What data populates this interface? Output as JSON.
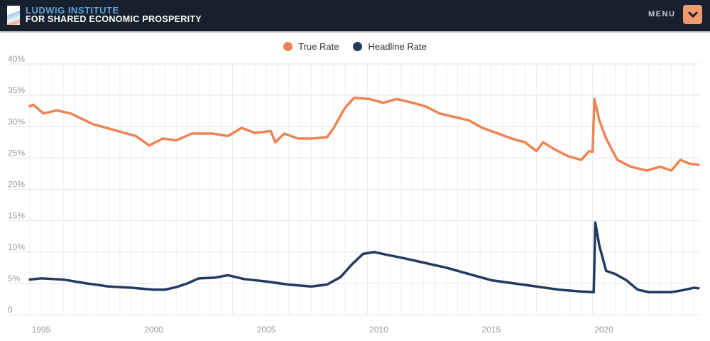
{
  "header": {
    "org_line1": "LUDWIG INSTITUTE",
    "org_line2": "FOR SHARED ECONOMIC PROSPERITY",
    "menu_label": "MENU",
    "menu_icon": "chevron-down-icon"
  },
  "chart_data": {
    "type": "line",
    "title": "",
    "xlabel": "",
    "ylabel": "",
    "xlim": [
      1994.4,
      2024.3
    ],
    "ylim": [
      0,
      40
    ],
    "grid": true,
    "legend_position": "top",
    "x_ticks": [
      "1995",
      "2000",
      "2005",
      "2010",
      "2015",
      "2020"
    ],
    "x_tick_values": [
      1995,
      2000,
      2005,
      2010,
      2015,
      2020
    ],
    "y_ticks": [
      "0",
      "5%",
      "10%",
      "15%",
      "20%",
      "25%",
      "30%",
      "35%",
      "40%"
    ],
    "y_tick_values": [
      0,
      5,
      10,
      15,
      20,
      25,
      30,
      35,
      40
    ],
    "series": [
      {
        "name": "True Rate",
        "color": "#ee8354",
        "points": [
          [
            1994.45,
            33.2
          ],
          [
            1994.65,
            33.5
          ],
          [
            1995.1,
            32.1
          ],
          [
            1995.7,
            32.6
          ],
          [
            1996.3,
            32.1
          ],
          [
            1997.3,
            30.4
          ],
          [
            1998.2,
            29.5
          ],
          [
            1999.2,
            28.5
          ],
          [
            1999.8,
            27.0
          ],
          [
            2000.4,
            28.1
          ],
          [
            2001.0,
            27.8
          ],
          [
            2001.7,
            28.9
          ],
          [
            2002.6,
            28.9
          ],
          [
            2003.3,
            28.5
          ],
          [
            2003.9,
            29.8
          ],
          [
            2004.5,
            29.0
          ],
          [
            2005.2,
            29.3
          ],
          [
            2005.4,
            27.5
          ],
          [
            2005.8,
            28.9
          ],
          [
            2006.4,
            28.1
          ],
          [
            2007.0,
            28.1
          ],
          [
            2007.7,
            28.3
          ],
          [
            2008.0,
            29.8
          ],
          [
            2008.5,
            33.0
          ],
          [
            2008.9,
            34.6
          ],
          [
            2009.6,
            34.4
          ],
          [
            2010.2,
            33.8
          ],
          [
            2010.8,
            34.4
          ],
          [
            2011.5,
            33.8
          ],
          [
            2012.1,
            33.2
          ],
          [
            2012.7,
            32.1
          ],
          [
            2013.4,
            31.5
          ],
          [
            2014.0,
            31.0
          ],
          [
            2014.6,
            29.8
          ],
          [
            2015.3,
            28.9
          ],
          [
            2015.9,
            28.1
          ],
          [
            2016.5,
            27.5
          ],
          [
            2017.0,
            26.1
          ],
          [
            2017.3,
            27.5
          ],
          [
            2017.8,
            26.4
          ],
          [
            2018.4,
            25.3
          ],
          [
            2019.0,
            24.7
          ],
          [
            2019.35,
            26.1
          ],
          [
            2019.5,
            26.0
          ],
          [
            2019.58,
            34.4
          ],
          [
            2019.8,
            31.0
          ],
          [
            2020.1,
            28.1
          ],
          [
            2020.6,
            24.7
          ],
          [
            2021.2,
            23.6
          ],
          [
            2021.9,
            23.0
          ],
          [
            2022.5,
            23.6
          ],
          [
            2023.0,
            23.0
          ],
          [
            2023.4,
            24.7
          ],
          [
            2023.8,
            24.1
          ],
          [
            2024.25,
            23.9
          ]
        ]
      },
      {
        "name": "Headline Rate",
        "color": "#243a5e",
        "points": [
          [
            1994.45,
            5.6
          ],
          [
            1995.0,
            5.8
          ],
          [
            1996.0,
            5.6
          ],
          [
            1997.0,
            5.0
          ],
          [
            1998.0,
            4.5
          ],
          [
            1999.0,
            4.3
          ],
          [
            2000.0,
            4.0
          ],
          [
            2000.5,
            4.0
          ],
          [
            2001.0,
            4.4
          ],
          [
            2001.5,
            5.0
          ],
          [
            2002.0,
            5.8
          ],
          [
            2002.7,
            5.9
          ],
          [
            2003.3,
            6.3
          ],
          [
            2004.0,
            5.7
          ],
          [
            2005.0,
            5.3
          ],
          [
            2006.0,
            4.8
          ],
          [
            2007.0,
            4.5
          ],
          [
            2007.7,
            4.8
          ],
          [
            2008.3,
            6.0
          ],
          [
            2008.8,
            8.0
          ],
          [
            2009.3,
            9.7
          ],
          [
            2009.8,
            10.0
          ],
          [
            2010.3,
            9.6
          ],
          [
            2011.0,
            9.1
          ],
          [
            2012.0,
            8.3
          ],
          [
            2013.0,
            7.5
          ],
          [
            2014.0,
            6.5
          ],
          [
            2015.0,
            5.5
          ],
          [
            2016.0,
            5.0
          ],
          [
            2017.0,
            4.5
          ],
          [
            2018.0,
            4.0
          ],
          [
            2019.0,
            3.7
          ],
          [
            2019.55,
            3.6
          ],
          [
            2019.62,
            14.7
          ],
          [
            2019.8,
            11.0
          ],
          [
            2020.1,
            7.0
          ],
          [
            2020.5,
            6.5
          ],
          [
            2021.0,
            5.5
          ],
          [
            2021.5,
            4.0
          ],
          [
            2022.0,
            3.6
          ],
          [
            2023.0,
            3.6
          ],
          [
            2023.5,
            3.9
          ],
          [
            2024.0,
            4.3
          ],
          [
            2024.25,
            4.2
          ]
        ]
      }
    ]
  }
}
